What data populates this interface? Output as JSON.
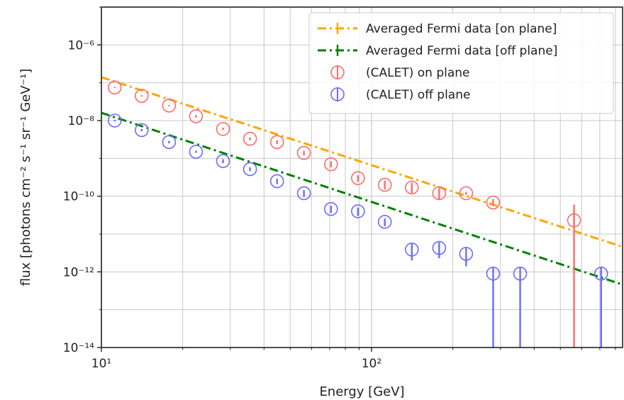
{
  "chart_data": {
    "type": "scatter",
    "xlabel": "Energy [GeV]",
    "ylabel": "flux [photons cm⁻² s⁻¹ sr⁻¹ GeV⁻¹]",
    "x_scale": "log",
    "y_scale": "log",
    "xlim": [
      10,
      850
    ],
    "ylim": [
      1e-14,
      1e-05
    ],
    "x_ticks": [
      {
        "value": 10,
        "label": "10¹"
      },
      {
        "value": 100,
        "label": "10²"
      }
    ],
    "y_ticks": [
      {
        "value": 1e-06,
        "label": "10⁻⁶"
      },
      {
        "value": 1e-08,
        "label": "10⁻⁸"
      },
      {
        "value": 1e-10,
        "label": "10⁻¹⁰"
      },
      {
        "value": 1e-12,
        "label": "10⁻¹²"
      },
      {
        "value": 1e-14,
        "label": "10⁻¹⁴"
      }
    ],
    "grid": true,
    "legend_position": "top-right",
    "series": [
      {
        "name": "Averaged Fermi data [on plane]",
        "kind": "line",
        "style": "dash-dot",
        "color": "#ffa500",
        "x": [
          10,
          850
        ],
        "y": [
          1.4e-07,
          4.6e-12
        ]
      },
      {
        "name": "Averaged Fermi data [off plane]",
        "kind": "line",
        "style": "dash-dot",
        "color": "#008000",
        "x": [
          10,
          850
        ],
        "y": [
          1.6e-08,
          4.6e-13
        ]
      },
      {
        "name": "(CALET) on plane",
        "kind": "errorbar",
        "marker": "open-circle",
        "color": "#ff6b6b",
        "x": [
          11.2,
          14.1,
          17.8,
          22.4,
          28.2,
          35.5,
          44.7,
          56.2,
          70.8,
          89.1,
          112,
          141,
          178,
          224,
          282,
          562
        ],
        "y": [
          7.5e-08,
          4.5e-08,
          2.5e-08,
          1.3e-08,
          6e-09,
          3.3e-09,
          2.7e-09,
          1.4e-09,
          7e-10,
          3e-10,
          2e-10,
          1.7e-10,
          1.2e-10,
          1.2e-10,
          6.8e-11,
          2.3e-11
        ],
        "yerr_low": [
          7.2e-08,
          4.3e-08,
          2.4e-08,
          1.2e-08,
          5.6e-09,
          3e-09,
          2.4e-09,
          1.2e-09,
          5.8e-10,
          2.4e-10,
          1.5e-10,
          1.2e-10,
          8e-11,
          1.1e-10,
          5.5e-11,
          1e-14
        ],
        "yerr_high": [
          7.8e-08,
          4.7e-08,
          2.6e-08,
          1.4e-08,
          6.5e-09,
          3.6e-09,
          3e-09,
          1.6e-09,
          8.4e-10,
          3.6e-10,
          2.6e-10,
          2.3e-10,
          1.6e-10,
          1.3e-10,
          8.4e-11,
          6e-11
        ]
      },
      {
        "name": "(CALET) off plane",
        "kind": "errorbar",
        "marker": "open-circle",
        "color": "#6b6bff",
        "x": [
          11.2,
          14.1,
          17.8,
          22.4,
          28.2,
          35.5,
          44.7,
          56.2,
          70.8,
          89.1,
          112,
          141,
          178,
          224,
          282,
          355,
          708
        ],
        "y": [
          1e-08,
          5.6e-09,
          2.7e-09,
          1.5e-09,
          8.5e-10,
          5.2e-10,
          2.5e-10,
          1.2e-10,
          4.6e-11,
          4e-11,
          2.1e-11,
          3.9e-12,
          4.3e-12,
          3e-12,
          9e-13,
          9e-13,
          9e-13
        ],
        "yerr_low": [
          9.5e-09,
          5.2e-09,
          2.5e-09,
          1.4e-09,
          7.5e-10,
          4.6e-10,
          2.1e-10,
          9.5e-11,
          3.6e-11,
          3e-11,
          1.6e-11,
          2e-12,
          2.3e-12,
          1.4e-12,
          1e-14,
          1e-14,
          1e-14
        ],
        "yerr_high": [
          1.05e-08,
          6e-09,
          2.9e-09,
          1.6e-09,
          9.5e-10,
          5.8e-10,
          2.9e-10,
          1.45e-10,
          5.6e-11,
          5e-11,
          2.6e-11,
          5.5e-12,
          6e-12,
          4.5e-12,
          1.3e-12,
          1.3e-12,
          1.3e-12
        ]
      }
    ]
  }
}
